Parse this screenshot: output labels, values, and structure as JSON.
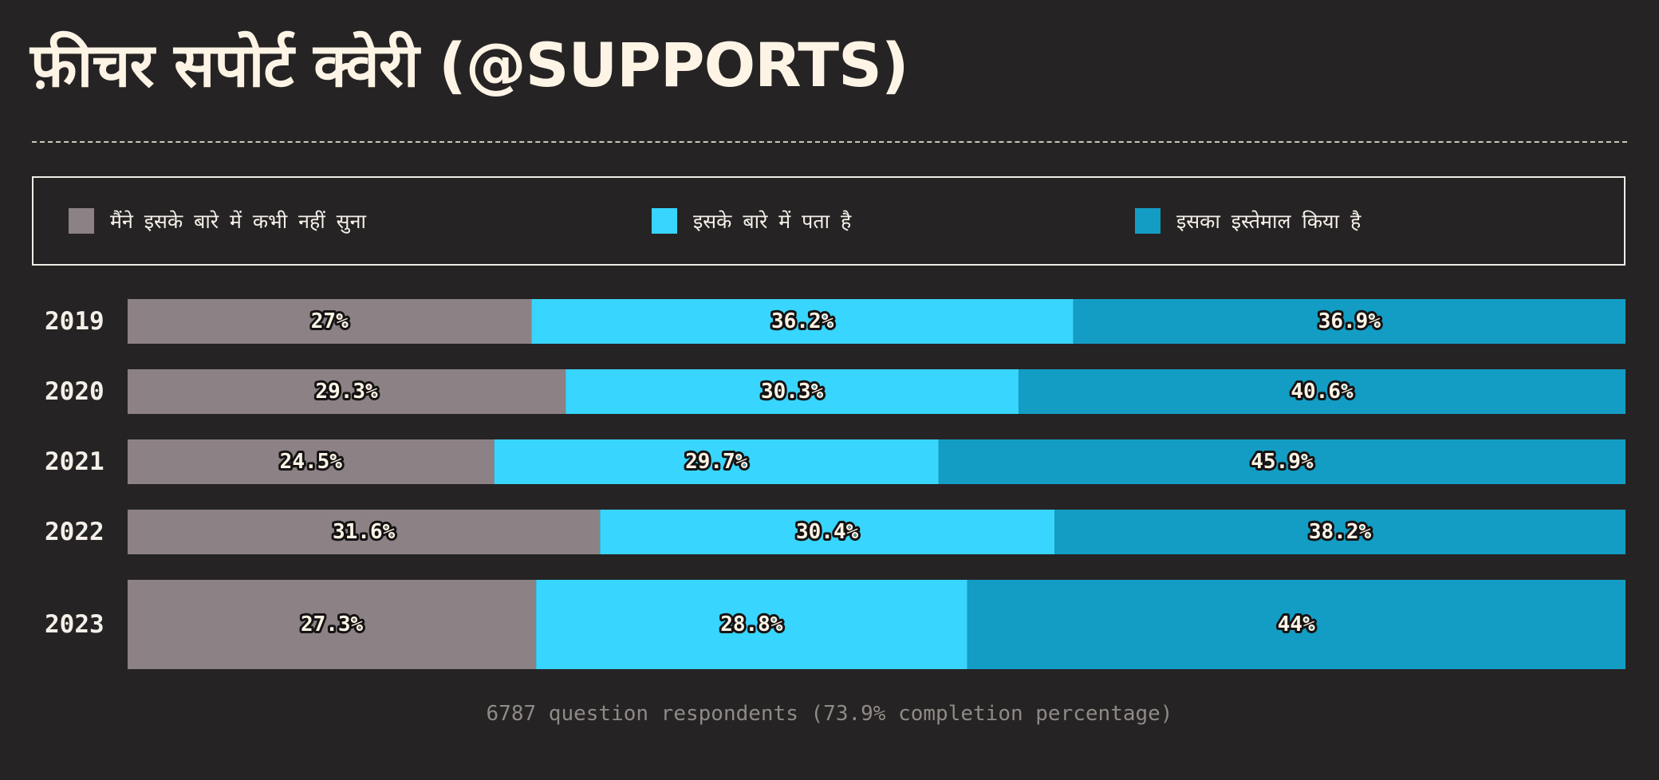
{
  "title": "फ़ीचर सपोर्ट क्वेरी (@SUPPORTS)",
  "legend": [
    {
      "label": "मैंने इसके बारे में कभी नहीं सुना",
      "color": "#8c8185"
    },
    {
      "label": "इसके बारे में पता है",
      "color": "#38d5fe"
    },
    {
      "label": "इसका इस्तेमाल किया है",
      "color": "#139dc4"
    }
  ],
  "footer": "6787 question respondents (73.9% completion percentage)",
  "chart_data": {
    "type": "bar",
    "orientation": "horizontal",
    "stacked": true,
    "normalized": true,
    "categories": [
      "2019",
      "2020",
      "2021",
      "2022",
      "2023"
    ],
    "series": [
      {
        "name": "मैंने इसके बारे में कभी नहीं सुना",
        "color": "#8c8185",
        "values": [
          27,
          29.3,
          24.5,
          31.6,
          27.3
        ],
        "labels": [
          "27%",
          "29.3%",
          "24.5%",
          "31.6%",
          "27.3%"
        ]
      },
      {
        "name": "इसके बारे में पता है",
        "color": "#38d5fe",
        "values": [
          36.2,
          30.3,
          29.7,
          30.4,
          28.8
        ],
        "labels": [
          "36.2%",
          "30.3%",
          "29.7%",
          "30.4%",
          "28.8%"
        ]
      },
      {
        "name": "इसका इस्तेमाल किया है",
        "color": "#139dc4",
        "values": [
          36.9,
          40.6,
          45.9,
          38.2,
          44
        ],
        "labels": [
          "36.9%",
          "40.6%",
          "45.9%",
          "38.2%",
          "44%"
        ]
      }
    ],
    "highlight_category": "2023",
    "legend_position": "top",
    "grid": false
  }
}
